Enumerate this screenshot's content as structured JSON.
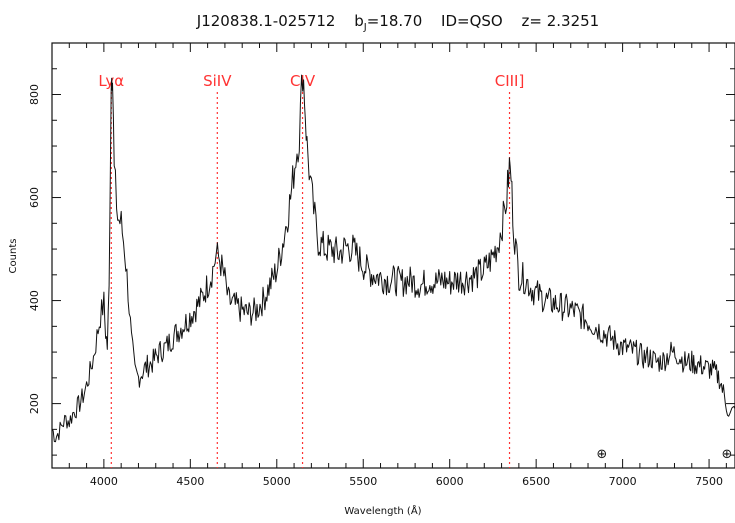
{
  "chart_data": {
    "type": "line",
    "title_parts": {
      "object": "J120838.1-025712",
      "bj_prefix": "b",
      "bj_sub": "J",
      "bj_value": "=18.70",
      "id": "ID=QSO",
      "z": "z=  2.3251"
    },
    "xlabel": "Wavelength  (Å)",
    "ylabel": "Counts",
    "xlim": [
      3700,
      7650
    ],
    "ylim": [
      75,
      900
    ],
    "x_ticks": [
      4000,
      4500,
      5000,
      5500,
      6000,
      6500,
      7000,
      7500
    ],
    "y_ticks": [
      200,
      400,
      600,
      800
    ],
    "grid": false,
    "emission_lines": [
      {
        "label": "Lyα",
        "x": 4043
      },
      {
        "label": "SiIV",
        "x": 4656
      },
      {
        "label": "CIV",
        "x": 5149
      },
      {
        "label": "CIII]",
        "x": 6346
      }
    ],
    "telluric_markers": [
      {
        "symbol": "⊕",
        "x": 6880
      },
      {
        "symbol": "⊕",
        "x": 7605
      }
    ],
    "colors": {
      "spectrum": "#111111",
      "emission_line": "#ff3333"
    },
    "series": [
      {
        "values": [
          [
            3700,
            150
          ],
          [
            3720,
            135
          ],
          [
            3740,
            145
          ],
          [
            3760,
            160
          ],
          [
            3780,
            170
          ],
          [
            3800,
            165
          ],
          [
            3820,
            180
          ],
          [
            3840,
            190
          ],
          [
            3860,
            200
          ],
          [
            3880,
            215
          ],
          [
            3900,
            235
          ],
          [
            3920,
            260
          ],
          [
            3940,
            290
          ],
          [
            3960,
            330
          ],
          [
            3980,
            370
          ],
          [
            4000,
            395
          ],
          [
            4010,
            340
          ],
          [
            4020,
            310
          ],
          [
            4030,
            420
          ],
          [
            4040,
            760
          ],
          [
            4045,
            870
          ],
          [
            4050,
            830
          ],
          [
            4060,
            650
          ],
          [
            4080,
            560
          ],
          [
            4100,
            550
          ],
          [
            4120,
            500
          ],
          [
            4140,
            420
          ],
          [
            4160,
            320
          ],
          [
            4180,
            260
          ],
          [
            4200,
            250
          ],
          [
            4240,
            270
          ],
          [
            4280,
            280
          ],
          [
            4320,
            300
          ],
          [
            4360,
            310
          ],
          [
            4400,
            330
          ],
          [
            4440,
            345
          ],
          [
            4480,
            360
          ],
          [
            4520,
            380
          ],
          [
            4560,
            400
          ],
          [
            4600,
            430
          ],
          [
            4630,
            460
          ],
          [
            4650,
            490
          ],
          [
            4670,
            480
          ],
          [
            4700,
            440
          ],
          [
            4720,
            400
          ],
          [
            4760,
            390
          ],
          [
            4800,
            380
          ],
          [
            4840,
            375
          ],
          [
            4880,
            380
          ],
          [
            4920,
            400
          ],
          [
            4960,
            430
          ],
          [
            5000,
            460
          ],
          [
            5040,
            520
          ],
          [
            5080,
            600
          ],
          [
            5110,
            680
          ],
          [
            5130,
            720
          ],
          [
            5150,
            850
          ],
          [
            5160,
            800
          ],
          [
            5175,
            700
          ],
          [
            5200,
            610
          ],
          [
            5220,
            560
          ],
          [
            5240,
            515
          ],
          [
            5280,
            500
          ],
          [
            5320,
            500
          ],
          [
            5360,
            490
          ],
          [
            5400,
            505
          ],
          [
            5440,
            500
          ],
          [
            5480,
            480
          ],
          [
            5520,
            460
          ],
          [
            5560,
            450
          ],
          [
            5600,
            445
          ],
          [
            5640,
            440
          ],
          [
            5680,
            440
          ],
          [
            5720,
            435
          ],
          [
            5760,
            440
          ],
          [
            5800,
            435
          ],
          [
            5840,
            430
          ],
          [
            5880,
            440
          ],
          [
            5920,
            435
          ],
          [
            5960,
            440
          ],
          [
            6000,
            435
          ],
          [
            6040,
            440
          ],
          [
            6080,
            440
          ],
          [
            6120,
            445
          ],
          [
            6160,
            450
          ],
          [
            6200,
            460
          ],
          [
            6240,
            480
          ],
          [
            6280,
            510
          ],
          [
            6310,
            560
          ],
          [
            6330,
            600
          ],
          [
            6345,
            660
          ],
          [
            6355,
            640
          ],
          [
            6370,
            540
          ],
          [
            6400,
            450
          ],
          [
            6440,
            440
          ],
          [
            6480,
            420
          ],
          [
            6520,
            410
          ],
          [
            6560,
            400
          ],
          [
            6600,
            395
          ],
          [
            6640,
            390
          ],
          [
            6680,
            385
          ],
          [
            6720,
            380
          ],
          [
            6760,
            370
          ],
          [
            6800,
            360
          ],
          [
            6840,
            350
          ],
          [
            6880,
            340
          ],
          [
            6920,
            330
          ],
          [
            6960,
            320
          ],
          [
            7000,
            310
          ],
          [
            7040,
            305
          ],
          [
            7080,
            300
          ],
          [
            7120,
            290
          ],
          [
            7160,
            290
          ],
          [
            7200,
            280
          ],
          [
            7240,
            285
          ],
          [
            7280,
            300
          ],
          [
            7320,
            295
          ],
          [
            7360,
            280
          ],
          [
            7400,
            280
          ],
          [
            7440,
            275
          ],
          [
            7480,
            270
          ],
          [
            7520,
            265
          ],
          [
            7560,
            250
          ],
          [
            7600,
            200
          ],
          [
            7620,
            175
          ],
          [
            7650,
            190
          ]
        ]
      }
    ]
  }
}
